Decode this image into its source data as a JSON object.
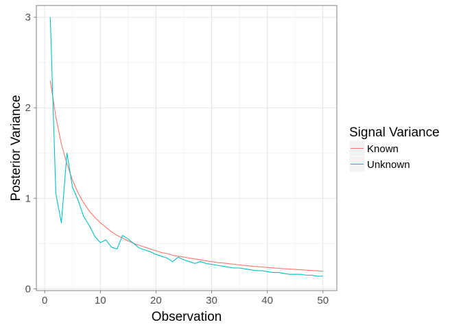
{
  "chart_data": {
    "type": "line",
    "xlabel": "Observation",
    "ylabel": "Posterior Variance",
    "xlim": [
      -1.5,
      52.5
    ],
    "ylim": [
      -0.02,
      3.13
    ],
    "xticks": [
      0,
      10,
      20,
      30,
      40,
      50
    ],
    "yticks": [
      0,
      1,
      2,
      3
    ],
    "grid": true,
    "legend": {
      "title": "Signal Variance",
      "position": "right"
    },
    "series": [
      {
        "name": "Known",
        "color": "#F8766D",
        "x": [
          1,
          2,
          3,
          4,
          5,
          6,
          7,
          8,
          9,
          10,
          11,
          12,
          13,
          14,
          15,
          16,
          17,
          18,
          19,
          20,
          21,
          22,
          23,
          24,
          25,
          26,
          27,
          28,
          29,
          30,
          31,
          32,
          33,
          34,
          35,
          36,
          37,
          38,
          39,
          40,
          41,
          42,
          43,
          44,
          45,
          46,
          47,
          48,
          49,
          50
        ],
        "values": [
          2.3,
          1.9,
          1.6,
          1.38,
          1.2,
          1.06,
          0.95,
          0.86,
          0.79,
          0.73,
          0.68,
          0.63,
          0.59,
          0.56,
          0.53,
          0.5,
          0.48,
          0.46,
          0.44,
          0.42,
          0.4,
          0.39,
          0.37,
          0.36,
          0.35,
          0.34,
          0.33,
          0.32,
          0.31,
          0.3,
          0.29,
          0.285,
          0.278,
          0.271,
          0.264,
          0.258,
          0.252,
          0.246,
          0.241,
          0.236,
          0.231,
          0.226,
          0.222,
          0.218,
          0.214,
          0.21,
          0.206,
          0.202,
          0.198,
          0.194
        ]
      },
      {
        "name": "Unknown",
        "color": "#00BFC4",
        "x": [
          1,
          2,
          3,
          4,
          5,
          6,
          7,
          8,
          9,
          10,
          11,
          12,
          13,
          14,
          15,
          16,
          17,
          18,
          19,
          20,
          21,
          22,
          23,
          24,
          25,
          26,
          27,
          28,
          29,
          30,
          31,
          32,
          33,
          34,
          35,
          36,
          37,
          38,
          39,
          40,
          41,
          42,
          43,
          44,
          45,
          46,
          47,
          48,
          49,
          50
        ],
        "values": [
          3.0,
          1.05,
          0.73,
          1.5,
          1.12,
          0.98,
          0.8,
          0.7,
          0.58,
          0.51,
          0.54,
          0.46,
          0.44,
          0.59,
          0.55,
          0.5,
          0.45,
          0.43,
          0.41,
          0.38,
          0.36,
          0.34,
          0.3,
          0.35,
          0.32,
          0.3,
          0.28,
          0.3,
          0.28,
          0.27,
          0.26,
          0.25,
          0.24,
          0.23,
          0.23,
          0.22,
          0.21,
          0.2,
          0.2,
          0.19,
          0.18,
          0.18,
          0.17,
          0.16,
          0.16,
          0.16,
          0.15,
          0.15,
          0.14,
          0.14
        ]
      }
    ]
  }
}
